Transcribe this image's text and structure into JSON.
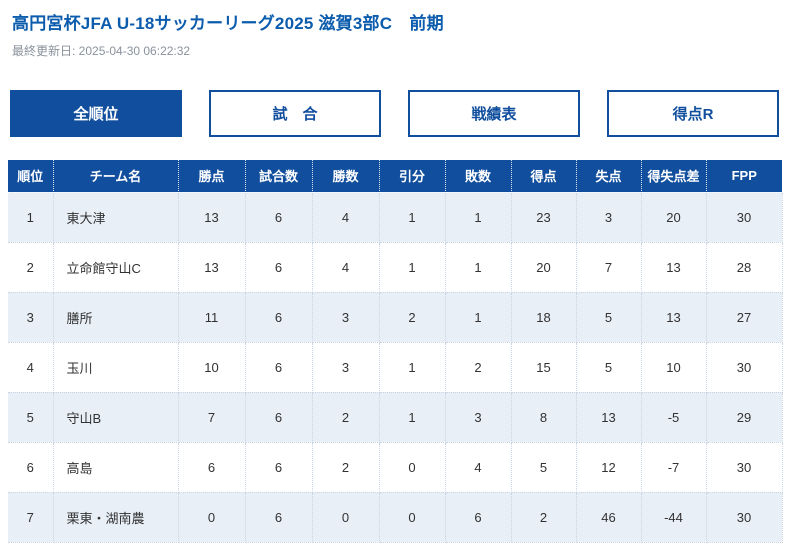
{
  "page": {
    "title": "高円宮杯JFA U-18サッカーリーグ2025 滋賀3部C　前期",
    "last_updated": "最終更新日: 2025-04-30 06:22:32"
  },
  "colors": {
    "primary_blue": "#114F9E",
    "title_blue": "#0C5CAD",
    "row_alt_blue": "#E8EFF7",
    "muted_gray": "#8A929C"
  },
  "tabs": [
    {
      "label": "全順位",
      "active": true
    },
    {
      "label": "試　合",
      "active": false
    },
    {
      "label": "戦績表",
      "active": false
    },
    {
      "label": "得点R",
      "active": false
    }
  ],
  "table": {
    "headers": [
      "順位",
      "チーム名",
      "勝点",
      "試合数",
      "勝数",
      "引分",
      "敗数",
      "得点",
      "失点",
      "得失点差",
      "FPP"
    ],
    "rows": [
      [
        "1",
        "東大津",
        "13",
        "6",
        "4",
        "1",
        "1",
        "23",
        "3",
        "20",
        "30"
      ],
      [
        "2",
        "立命館守山C",
        "13",
        "6",
        "4",
        "1",
        "1",
        "20",
        "7",
        "13",
        "28"
      ],
      [
        "3",
        "膳所",
        "11",
        "6",
        "3",
        "2",
        "1",
        "18",
        "5",
        "13",
        "27"
      ],
      [
        "4",
        "玉川",
        "10",
        "6",
        "3",
        "1",
        "2",
        "15",
        "5",
        "10",
        "30"
      ],
      [
        "5",
        "守山B",
        "7",
        "6",
        "2",
        "1",
        "3",
        "8",
        "13",
        "-5",
        "29"
      ],
      [
        "6",
        "高島",
        "6",
        "6",
        "2",
        "0",
        "4",
        "5",
        "12",
        "-7",
        "30"
      ],
      [
        "7",
        "栗東・湖南農",
        "0",
        "6",
        "0",
        "0",
        "6",
        "2",
        "46",
        "-44",
        "30"
      ]
    ]
  }
}
